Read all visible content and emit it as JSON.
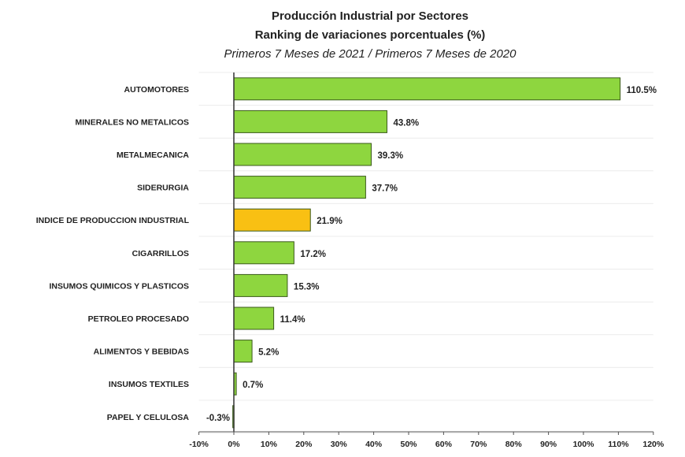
{
  "chart_data": {
    "type": "bar",
    "orientation": "horizontal",
    "title": "Producción Industrial por Sectores",
    "subtitle": "Ranking de variaciones porcentuales (%)",
    "subtitle2": "Primeros 7 Meses de 2021 / Primeros 7 Meses de 2020",
    "categories": [
      "AUTOMOTORES",
      "MINERALES NO METALICOS",
      "METALMECANICA",
      "SIDERURGIA",
      "INDICE DE PRODUCCION INDUSTRIAL",
      "CIGARRILLOS",
      "INSUMOS QUIMICOS Y PLASTICOS",
      "PETROLEO PROCESADO",
      "ALIMENTOS Y BEBIDAS",
      "INSUMOS TEXTILES",
      "PAPEL Y CELULOSA"
    ],
    "values": [
      110.5,
      43.8,
      39.3,
      37.7,
      21.9,
      17.2,
      15.3,
      11.4,
      5.2,
      0.7,
      -0.3
    ],
    "labels": [
      "110.5%",
      "43.8%",
      "39.3%",
      "37.7%",
      "21.9%",
      "17.2%",
      "15.3%",
      "11.4%",
      "5.2%",
      "0.7%",
      "-0.3%"
    ],
    "highlight_index": 4,
    "xlim": [
      -10,
      120
    ],
    "xticks": [
      "-10%",
      "0%",
      "10%",
      "20%",
      "30%",
      "40%",
      "50%",
      "60%",
      "70%",
      "80%",
      "90%",
      "100%",
      "110%",
      "120%"
    ],
    "grid": true,
    "colors": {
      "bar": "#8ed63f",
      "highlight": "#f9c013",
      "edge": "#3a5a1a"
    }
  }
}
